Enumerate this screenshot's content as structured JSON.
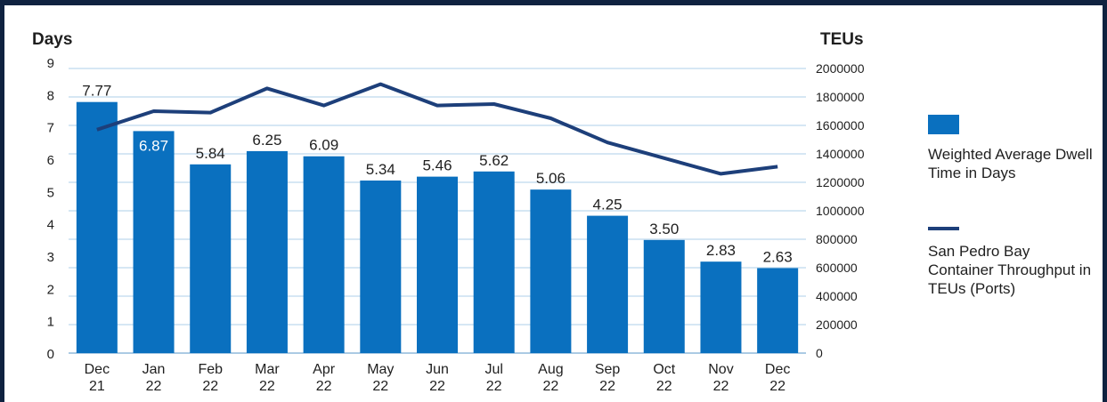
{
  "chart_data": {
    "type": "bar",
    "categories": [
      "Dec\n21",
      "Jan\n22",
      "Feb\n22",
      "Mar\n22",
      "Apr\n22",
      "May\n22",
      "Jun\n22",
      "Jul\n22",
      "Aug\n22",
      "Sep\n22",
      "Oct\n22",
      "Nov\n22",
      "Dec\n22"
    ],
    "left_axis": {
      "title": "Days",
      "ylim": [
        0,
        9
      ],
      "ticks": [
        0,
        1,
        2,
        3,
        4,
        5,
        6,
        7,
        8,
        9
      ]
    },
    "right_axis": {
      "title": "TEUs",
      "ylim": [
        0,
        2000000
      ],
      "ticks": [
        0,
        200000,
        400000,
        600000,
        800000,
        1000000,
        1200000,
        1400000,
        1600000,
        1800000,
        2000000
      ]
    },
    "series": [
      {
        "name": "Weighted Average Dwell Time in Days",
        "type": "bar",
        "axis": "left",
        "color": "#0a70bf",
        "values": [
          7.77,
          6.87,
          5.84,
          6.25,
          6.09,
          5.34,
          5.46,
          5.62,
          5.06,
          4.25,
          3.5,
          2.83,
          2.63
        ],
        "labels": [
          "7.77",
          "6.87",
          "5.84",
          "6.25",
          "6.09",
          "5.34",
          "5.46",
          "5.62",
          "5.06",
          "4.25",
          "3.50",
          "2.83",
          "2.63"
        ]
      },
      {
        "name": "San Pedro Bay Container Throughput in TEUs (Ports)",
        "type": "line",
        "axis": "right",
        "color": "#1d3f7a",
        "values": [
          1570000,
          1700000,
          1690000,
          1860000,
          1740000,
          1890000,
          1740000,
          1750000,
          1650000,
          1480000,
          1370000,
          1260000,
          1310000
        ]
      }
    ],
    "grid": true,
    "legend": "right"
  },
  "legend": {
    "bar_label": "Weighted Average Dwell Time in Days",
    "line_label": "San Pedro Bay Container Throughput in TEUs (Ports)"
  }
}
